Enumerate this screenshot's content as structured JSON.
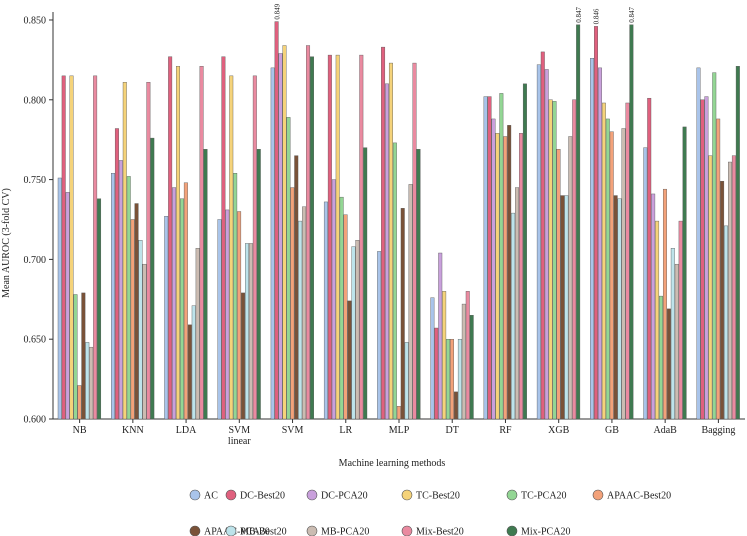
{
  "chart_data": {
    "type": "bar",
    "title": "",
    "xlabel": "Machine learning methods",
    "ylabel": "Mean AUROC (3-fold CV)",
    "ylim": [
      0.6,
      0.855
    ],
    "yticks": [
      "0.600",
      "0.650",
      "0.700",
      "0.750",
      "0.800",
      "0.850"
    ],
    "ytick_values": [
      0.6,
      0.65,
      0.7,
      0.75,
      0.8,
      0.85
    ],
    "grid": false,
    "legend_position": "bottom",
    "categories": [
      "NB",
      "KNN",
      "LDA",
      "SVM\nlinear",
      "SVM",
      "LR",
      "MLP",
      "DT",
      "RF",
      "XGB",
      "GB",
      "AdaB",
      "Bagging"
    ],
    "series": [
      {
        "name": "AC",
        "color": "#a9c4ea",
        "values": [
          0.751,
          0.754,
          0.727,
          0.725,
          0.82,
          0.736,
          0.705,
          0.676,
          0.802,
          0.822,
          0.826,
          0.77,
          0.82
        ]
      },
      {
        "name": "DC-Best20",
        "color": "#e0607e",
        "values": [
          0.815,
          0.782,
          0.827,
          0.827,
          0.849,
          0.828,
          0.833,
          0.657,
          0.802,
          0.83,
          0.846,
          0.801,
          0.8
        ]
      },
      {
        "name": "DC-PCA20",
        "color": "#c9a0dc",
        "values": [
          0.742,
          0.762,
          0.745,
          0.731,
          0.829,
          0.75,
          0.81,
          0.704,
          0.788,
          0.819,
          0.82,
          0.741,
          0.802
        ]
      },
      {
        "name": "TC-Best20",
        "color": "#f5d37a",
        "values": [
          0.815,
          0.811,
          0.821,
          0.815,
          0.834,
          0.828,
          0.823,
          0.68,
          0.779,
          0.8,
          0.798,
          0.724,
          0.765
        ]
      },
      {
        "name": "TC-PCA20",
        "color": "#93d694",
        "values": [
          0.678,
          0.752,
          0.738,
          0.754,
          0.789,
          0.739,
          0.773,
          0.65,
          0.804,
          0.799,
          0.788,
          0.677,
          0.817
        ]
      },
      {
        "name": "APAAC-Best20",
        "color": "#f3a27a",
        "values": [
          0.621,
          0.725,
          0.748,
          0.73,
          0.745,
          0.728,
          0.608,
          0.65,
          0.777,
          0.769,
          0.78,
          0.744,
          0.788
        ]
      },
      {
        "name": "APAAC-PCA20",
        "color": "#7a5238",
        "values": [
          0.679,
          0.735,
          0.659,
          0.679,
          0.765,
          0.674,
          0.732,
          0.617,
          0.784,
          0.74,
          0.74,
          0.669,
          0.749
        ]
      },
      {
        "name": "MB-Best20",
        "color": "#bde3ea",
        "values": [
          0.648,
          0.712,
          0.671,
          0.71,
          0.724,
          0.708,
          0.648,
          0.65,
          0.729,
          0.74,
          0.738,
          0.707,
          0.721
        ]
      },
      {
        "name": "MB-PCA20",
        "color": "#cbbcb2",
        "values": [
          0.645,
          0.697,
          0.707,
          0.71,
          0.733,
          0.712,
          0.747,
          0.672,
          0.745,
          0.777,
          0.782,
          0.697,
          0.761
        ]
      },
      {
        "name": "Mix-Best20",
        "color": "#ea8aa0",
        "values": [
          0.815,
          0.811,
          0.821,
          0.815,
          0.834,
          0.828,
          0.823,
          0.68,
          0.779,
          0.8,
          0.798,
          0.724,
          0.765
        ]
      },
      {
        "name": "Mix-PCA20",
        "color": "#3f7a50",
        "values": [
          0.738,
          0.776,
          0.769,
          0.769,
          0.827,
          0.77,
          0.769,
          0.665,
          0.81,
          0.847,
          0.847,
          0.783,
          0.821
        ]
      }
    ],
    "annotations": [
      {
        "category": "SVM",
        "series": "DC-Best20",
        "text": "0.849"
      },
      {
        "category": "XGB",
        "series": "Mix-PCA20",
        "text": "0.847"
      },
      {
        "category": "GB",
        "series": "DC-Best20",
        "text": "0.846"
      },
      {
        "category": "GB",
        "series": "Mix-PCA20",
        "text": "0.847"
      }
    ]
  }
}
